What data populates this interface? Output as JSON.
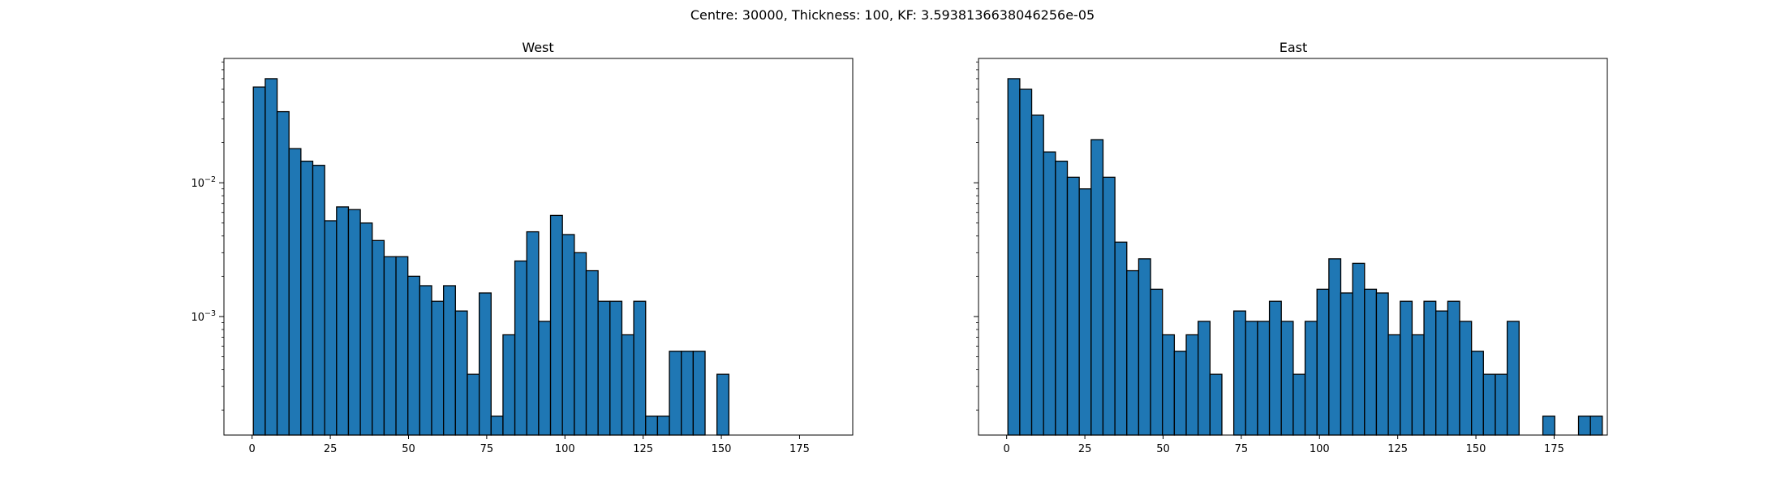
{
  "figure": {
    "suptitle": "Centre: 30000, Thickness: 100, KF: 3.5938136638046256e-05"
  },
  "colors": {
    "bar_fill": "#1f77b4",
    "bar_edge": "#000000",
    "axes": "#000000",
    "background": "#ffffff"
  },
  "chart_data": [
    {
      "type": "bar",
      "subtype": "histogram",
      "title": "West",
      "xlabel": "",
      "ylabel": "",
      "yscale": "log",
      "xlim": [
        -9,
        192
      ],
      "ylim": [
        0.00013,
        0.085
      ],
      "xticks": [
        0,
        25,
        50,
        75,
        100,
        125,
        150,
        175
      ],
      "yticks": [
        {
          "base": "10",
          "exp": "−3",
          "value": 0.001
        },
        {
          "base": "10",
          "exp": "−2",
          "value": 0.01
        }
      ],
      "bin_start": 0.4,
      "bin_width": 3.8,
      "values": [
        0.052,
        0.06,
        0.034,
        0.018,
        0.0145,
        0.0135,
        0.0052,
        0.0066,
        0.0063,
        0.005,
        0.0037,
        0.0028,
        0.0028,
        0.002,
        0.0017,
        0.0013,
        0.0017,
        0.0011,
        0.00037,
        0.0015,
        0.00018,
        0.00073,
        0.0026,
        0.0043,
        0.00092,
        0.0057,
        0.0041,
        0.003,
        0.0022,
        0.0013,
        0.0013,
        0.00073,
        0.0013,
        0.00018,
        0.00018,
        0.00055,
        0.00055,
        0.00055,
        0,
        0.00037
      ]
    },
    {
      "type": "bar",
      "subtype": "histogram",
      "title": "East",
      "xlabel": "",
      "ylabel": "",
      "yscale": "log",
      "xlim": [
        -9,
        192
      ],
      "ylim": [
        0.00013,
        0.085
      ],
      "xticks": [
        0,
        25,
        50,
        75,
        100,
        125,
        150,
        175
      ],
      "yticks": [
        {
          "base": "10",
          "exp": "−3",
          "value": 0.001
        },
        {
          "base": "10",
          "exp": "−2",
          "value": 0.01
        }
      ],
      "bin_start": 0.4,
      "bin_width": 3.8,
      "values": [
        0.06,
        0.05,
        0.032,
        0.017,
        0.0145,
        0.011,
        0.009,
        0.021,
        0.011,
        0.0036,
        0.0022,
        0.0027,
        0.0016,
        0.00073,
        0.00055,
        0.00073,
        0.00092,
        0.00037,
        0,
        0.0011,
        0.00092,
        0.00092,
        0.0013,
        0.00092,
        0.00037,
        0.00092,
        0.0016,
        0.0027,
        0.0015,
        0.0025,
        0.0016,
        0.0015,
        0.00073,
        0.0013,
        0.00073,
        0.0013,
        0.0011,
        0.0013,
        0.00092,
        0.00055,
        0.00037,
        0.00037,
        0.00092,
        0,
        0,
        0.00018,
        0,
        0,
        0.00018,
        0.00018
      ]
    }
  ]
}
